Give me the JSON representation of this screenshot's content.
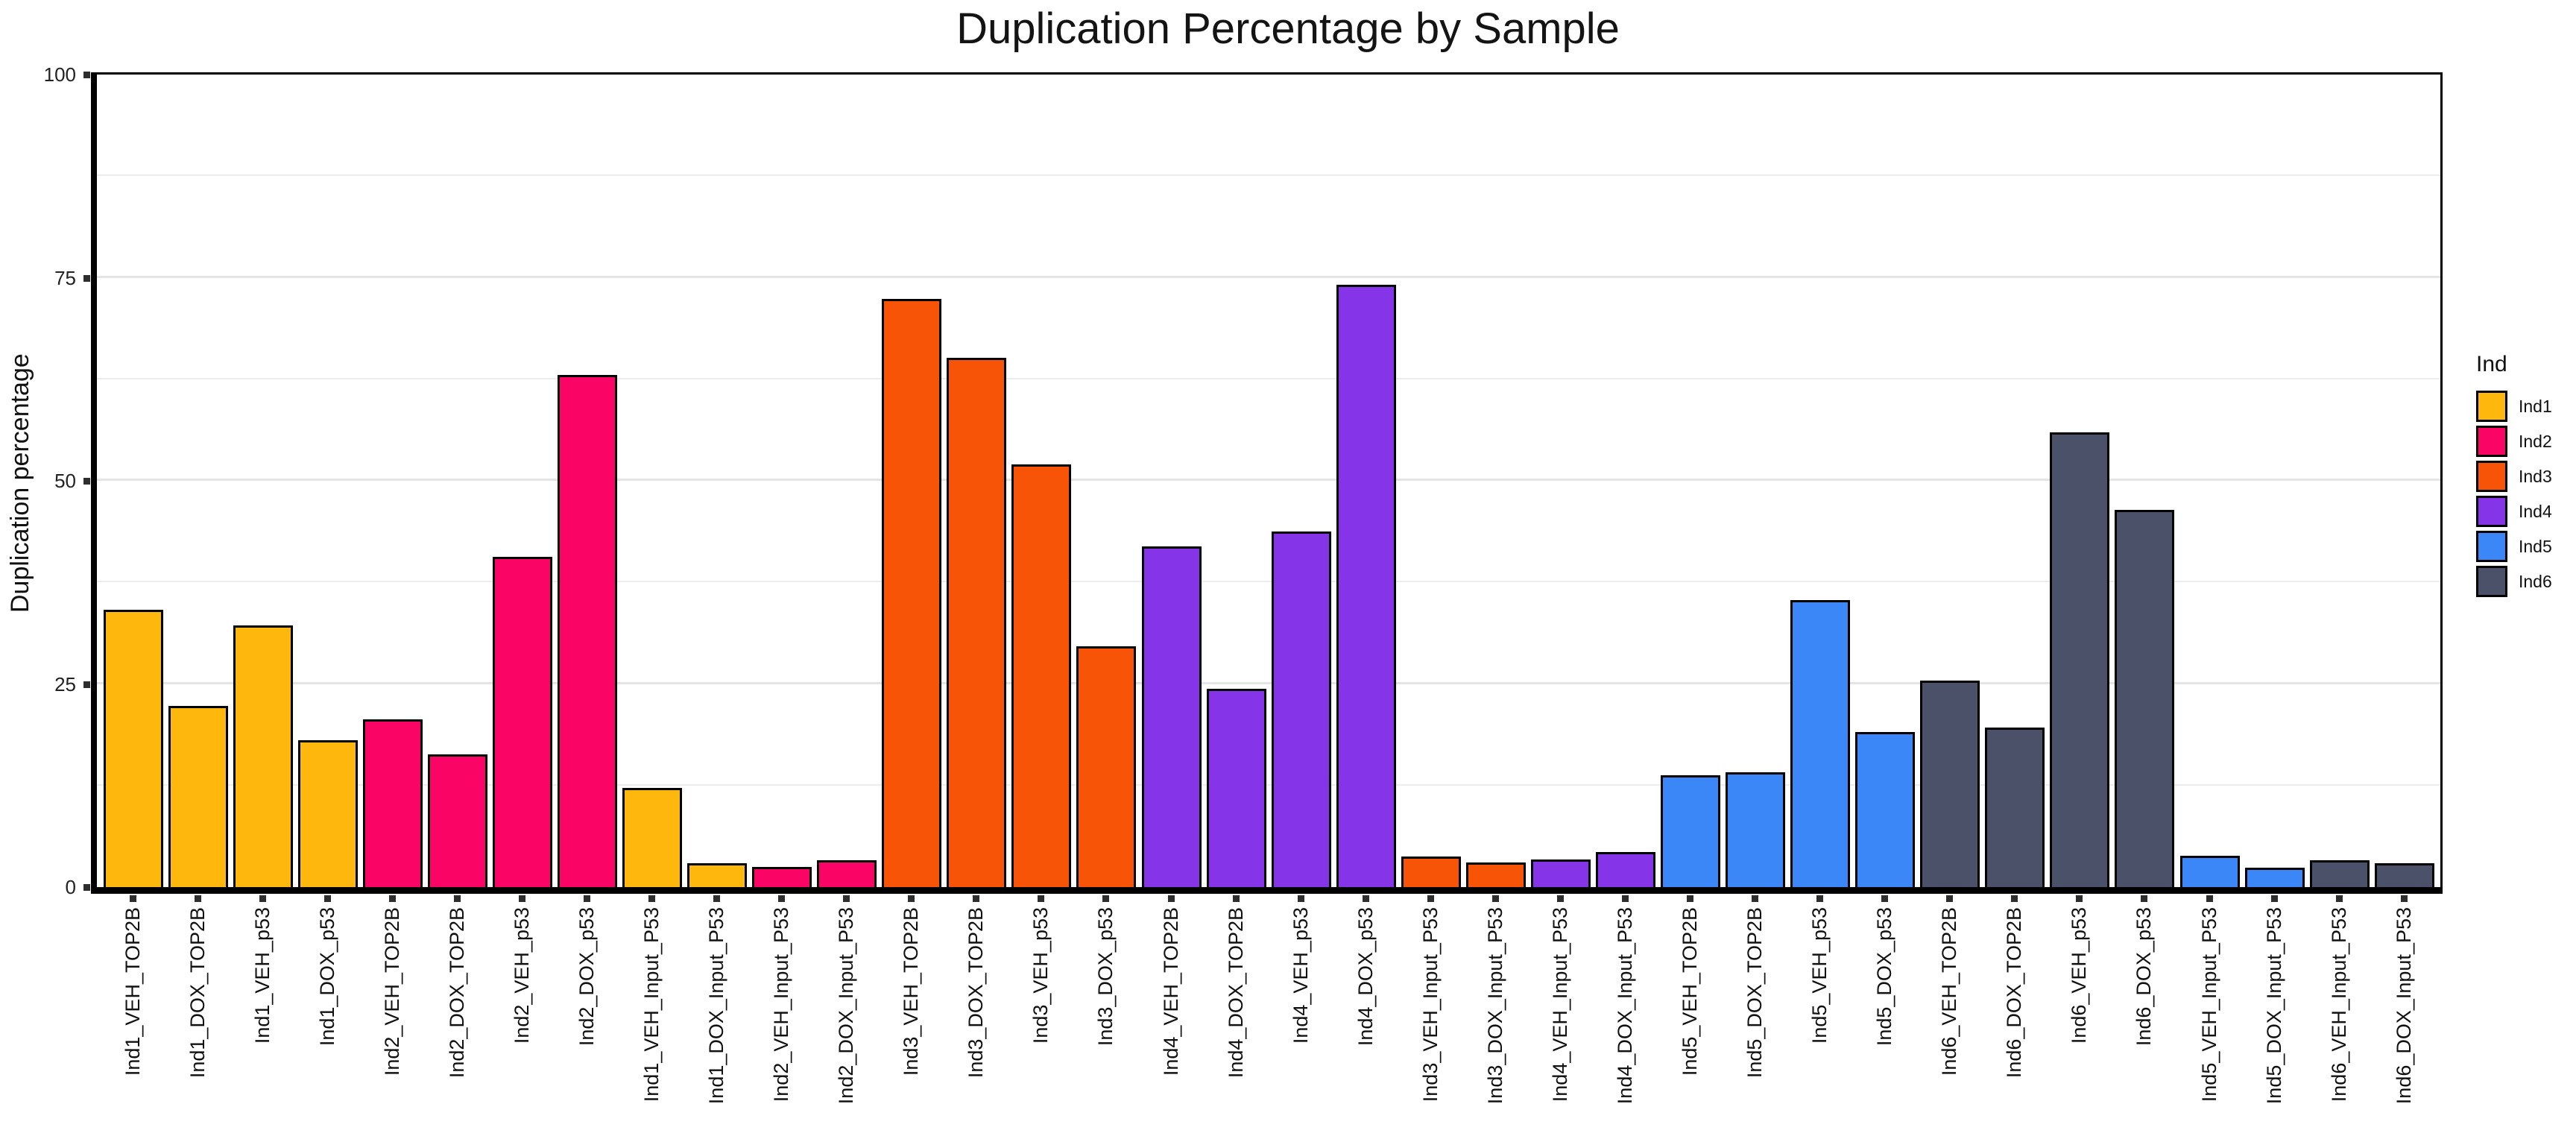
{
  "chart_data": {
    "type": "bar",
    "title": "Duplication Percentage by Sample",
    "ylabel": "Duplication percentage",
    "xlabel": "",
    "ylim": [
      0,
      100
    ],
    "y_major_ticks": [
      0,
      25,
      50,
      75,
      100
    ],
    "y_major_gridlines": [
      25,
      50,
      75
    ],
    "y_minor_gridlines": [
      12.5,
      37.5,
      62.5,
      87.5
    ],
    "grid": "on",
    "legend_position": "right",
    "legend": {
      "title": "Ind",
      "entries": [
        {
          "label": "Ind1",
          "color": "#FDB70D"
        },
        {
          "label": "Ind2",
          "color": "#FA0566"
        },
        {
          "label": "Ind3",
          "color": "#F85408"
        },
        {
          "label": "Ind4",
          "color": "#8634E8"
        },
        {
          "label": "Ind5",
          "color": "#3C87F8"
        },
        {
          "label": "Ind6",
          "color": "#4B5168"
        }
      ]
    },
    "group_colors": {
      "Ind1": "#FDB70D",
      "Ind2": "#FA0566",
      "Ind3": "#F85408",
      "Ind4": "#8634E8",
      "Ind5": "#3C87F8",
      "Ind6": "#4B5168"
    },
    "bars": [
      {
        "label": "Ind1_VEH_TOP2B",
        "group": "Ind1",
        "value": 34.1
      },
      {
        "label": "Ind1_DOX_TOP2B",
        "group": "Ind1",
        "value": 22.3
      },
      {
        "label": "Ind1_VEH_p53",
        "group": "Ind1",
        "value": 32.2
      },
      {
        "label": "Ind1_DOX_p53",
        "group": "Ind1",
        "value": 18.1
      },
      {
        "label": "Ind2_VEH_TOP2B",
        "group": "Ind2",
        "value": 20.6
      },
      {
        "label": "Ind2_DOX_TOP2B",
        "group": "Ind2",
        "value": 16.3
      },
      {
        "label": "Ind2_VEH_p53",
        "group": "Ind2",
        "value": 40.6
      },
      {
        "label": "Ind2_DOX_p53",
        "group": "Ind2",
        "value": 63.0
      },
      {
        "label": "Ind1_VEH_Input_P53",
        "group": "Ind1",
        "value": 12.2
      },
      {
        "label": "Ind1_DOX_Input_P53",
        "group": "Ind1",
        "value": 2.9
      },
      {
        "label": "Ind2_VEH_Input_P53",
        "group": "Ind2",
        "value": 2.5
      },
      {
        "label": "Ind2_DOX_Input_P53",
        "group": "Ind2",
        "value": 3.3
      },
      {
        "label": "Ind3_VEH_TOP2B",
        "group": "Ind3",
        "value": 72.4
      },
      {
        "label": "Ind3_DOX_TOP2B",
        "group": "Ind3",
        "value": 65.1
      },
      {
        "label": "Ind3_VEH_p53",
        "group": "Ind3",
        "value": 52.0
      },
      {
        "label": "Ind3_DOX_p53",
        "group": "Ind3",
        "value": 29.6
      },
      {
        "label": "Ind4_VEH_TOP2B",
        "group": "Ind4",
        "value": 41.9
      },
      {
        "label": "Ind4_DOX_TOP2B",
        "group": "Ind4",
        "value": 24.4
      },
      {
        "label": "Ind4_VEH_p53",
        "group": "Ind4",
        "value": 43.8
      },
      {
        "label": "Ind4_DOX_p53",
        "group": "Ind4",
        "value": 74.1
      },
      {
        "label": "Ind3_VEH_Input_P53",
        "group": "Ind3",
        "value": 3.8
      },
      {
        "label": "Ind3_DOX_Input_P53",
        "group": "Ind3",
        "value": 3.0
      },
      {
        "label": "Ind4_VEH_Input_P53",
        "group": "Ind4",
        "value": 3.4
      },
      {
        "label": "Ind4_DOX_Input_P53",
        "group": "Ind4",
        "value": 4.3
      },
      {
        "label": "Ind5_VEH_TOP2B",
        "group": "Ind5",
        "value": 13.8
      },
      {
        "label": "Ind5_DOX_TOP2B",
        "group": "Ind5",
        "value": 14.1
      },
      {
        "label": "Ind5_VEH_p53",
        "group": "Ind5",
        "value": 35.3
      },
      {
        "label": "Ind5_DOX_p53",
        "group": "Ind5",
        "value": 19.1
      },
      {
        "label": "Ind6_VEH_TOP2B",
        "group": "Ind6",
        "value": 25.4
      },
      {
        "label": "Ind6_DOX_TOP2B",
        "group": "Ind6",
        "value": 19.6
      },
      {
        "label": "Ind6_VEH_p53",
        "group": "Ind6",
        "value": 56.0
      },
      {
        "label": "Ind6_DOX_p53",
        "group": "Ind6",
        "value": 46.4
      },
      {
        "label": "Ind5_VEH_Input_P53",
        "group": "Ind5",
        "value": 3.9
      },
      {
        "label": "Ind5_DOX_Input_P53",
        "group": "Ind5",
        "value": 2.4
      },
      {
        "label": "Ind6_VEH_Input_P53",
        "group": "Ind6",
        "value": 3.3
      },
      {
        "label": "Ind6_DOX_Input_P53",
        "group": "Ind6",
        "value": 2.9
      }
    ]
  }
}
